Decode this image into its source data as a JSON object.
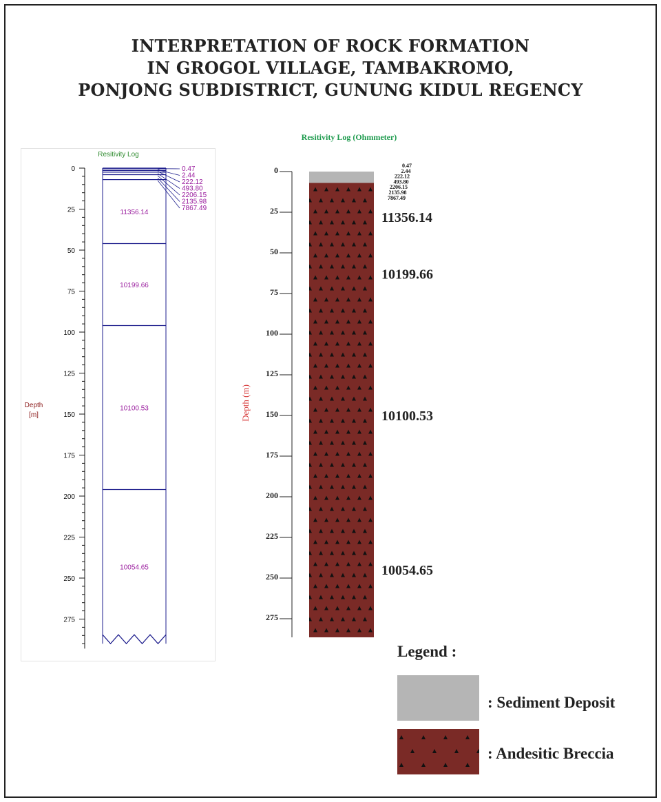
{
  "title_lines": [
    "INTERPRETATION OF ROCK FORMATION",
    "IN GROGOL VILLAGE, TAMBAKROMO,",
    "PONJONG SUBDISTRICT, GUNUNG KIDUL REGENCY"
  ],
  "left_log": {
    "title": "Resitivity Log",
    "depth_label_line1": "Depth",
    "depth_label_line2": "[m]",
    "ticks": [
      "0",
      "25",
      "50",
      "75",
      "100",
      "125",
      "150",
      "175",
      "200",
      "225",
      "250",
      "275"
    ],
    "thin_layer_values": [
      "0.47",
      "2.44",
      "222.12",
      "493.80",
      "2206.15",
      "2135.98",
      "7867.49"
    ],
    "thick_layers": [
      {
        "value": "11356.14",
        "top_m": 7,
        "bottom_m": 46
      },
      {
        "value": "10199.66",
        "top_m": 46,
        "bottom_m": 96
      },
      {
        "value": "10100.53",
        "top_m": 96,
        "bottom_m": 196
      },
      {
        "value": "10054.65",
        "top_m": 196,
        "bottom_m": 290
      }
    ]
  },
  "right_log": {
    "title": "Resitivity Log (Ohmmeter)",
    "depth_label": "Depth (m)",
    "ticks": [
      "0",
      "25",
      "50",
      "75",
      "100",
      "125",
      "150",
      "175",
      "200",
      "225",
      "250",
      "275"
    ],
    "thin_layer_values": [
      "0.47",
      "2.44",
      "222.12",
      "493.80",
      "2206.15",
      "2135.98",
      "7867.49"
    ],
    "big_values": [
      "11356.14",
      "10199.66",
      "10100.53",
      "10054.65"
    ],
    "sediment_bottom_m": 7
  },
  "legend": {
    "title": "Legend :",
    "items": [
      {
        "label": ": Sediment Deposit",
        "color": "#b5b5b5"
      },
      {
        "label": ": Andesitic Breccia",
        "color": "#7a2a26"
      }
    ]
  },
  "colors": {
    "left_lines": "#1c1c8c",
    "left_values": "#9a1d9e",
    "left_title": "#2e8b2e",
    "left_depth": "#8b1a1a",
    "right_title": "#1e9b4e",
    "right_depth": "#d94040",
    "breccia": "#7a2a26",
    "sediment": "#b5b5b5"
  }
}
